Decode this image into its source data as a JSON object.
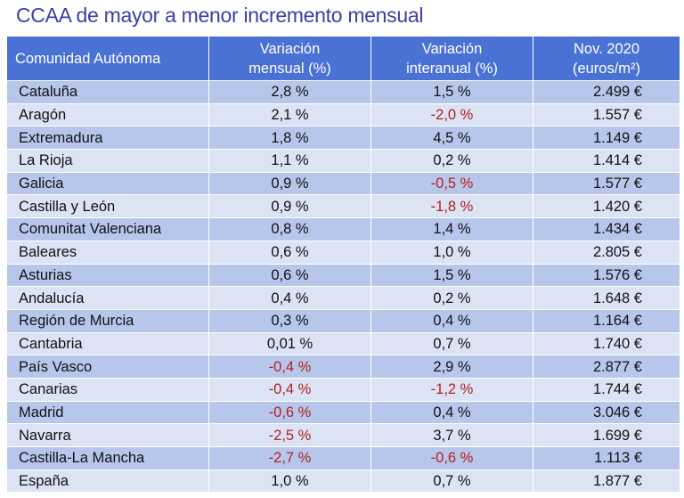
{
  "title": "CCAA de mayor a menor incremento mensual",
  "colors": {
    "header_bg": "#4a72d4",
    "row_odd": "#b7c7ec",
    "row_even": "#dce3f5",
    "negative": "#b5211c",
    "title": "#3b3fa6"
  },
  "headers": [
    "Comunidad Autónoma",
    "Variación mensual (%)",
    "Variación interanual (%)",
    "Nov. 2020 (euros/m²)"
  ],
  "rows": [
    {
      "name": "Cataluña",
      "monthly": "2,8 %",
      "annual": "1,5 %",
      "price": "2.499 €"
    },
    {
      "name": "Aragón",
      "monthly": "2,1 %",
      "annual": "-2,0 %",
      "price": "1.557 €"
    },
    {
      "name": "Extremadura",
      "monthly": "1,8 %",
      "annual": "4,5 %",
      "price": "1.149 €"
    },
    {
      "name": "La Rioja",
      "monthly": "1,1 %",
      "annual": "0,2 %",
      "price": "1.414 €"
    },
    {
      "name": "Galicia",
      "monthly": "0,9 %",
      "annual": "-0,5 %",
      "price": "1.577 €"
    },
    {
      "name": "Castilla y León",
      "monthly": "0,9 %",
      "annual": "-1,8 %",
      "price": "1.420 €"
    },
    {
      "name": "Comunitat Valenciana",
      "monthly": "0,8 %",
      "annual": "1,4 %",
      "price": "1.434 €"
    },
    {
      "name": "Baleares",
      "monthly": "0,6 %",
      "annual": "1,0 %",
      "price": "2.805 €"
    },
    {
      "name": "Asturias",
      "monthly": "0,6 %",
      "annual": "1,5 %",
      "price": "1.576 €"
    },
    {
      "name": "Andalucía",
      "monthly": "0,4 %",
      "annual": "0,2 %",
      "price": "1.648 €"
    },
    {
      "name": "Región de Murcia",
      "monthly": "0,3 %",
      "annual": "0,4 %",
      "price": "1.164 €"
    },
    {
      "name": "Cantabria",
      "monthly": "0,01 %",
      "annual": "0,7 %",
      "price": "1.740 €"
    },
    {
      "name": "País Vasco",
      "monthly": "-0,4 %",
      "annual": "2,9 %",
      "price": "2.877 €"
    },
    {
      "name": "Canarias",
      "monthly": "-0,4 %",
      "annual": "-1,2 %",
      "price": "1.744 €"
    },
    {
      "name": "Madrid",
      "monthly": "-0,6 %",
      "annual": "0,4 %",
      "price": "3.046 €"
    },
    {
      "name": "Navarra",
      "monthly": "-2,5 %",
      "annual": "3,7 %",
      "price": "1.699 €"
    },
    {
      "name": "Castilla-La Mancha",
      "monthly": "-2,7 %",
      "annual": "-0,6 %",
      "price": "1.113 €"
    },
    {
      "name": "España",
      "monthly": "1,0 %",
      "annual": "0,7 %",
      "price": "1.877 €"
    }
  ]
}
